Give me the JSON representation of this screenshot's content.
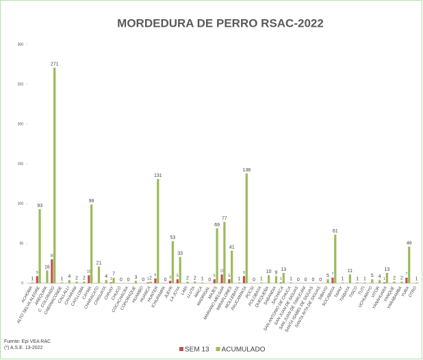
{
  "chart_data": {
    "type": "bar",
    "title": "MORDEDURA DE PERRO RSAC-2022",
    "categories": [
      "ACHOMA",
      "ALTO SELVA ALEGRE",
      "AREQUIPA",
      "C. COLORADO",
      "CABANACONDE",
      "CALLALLI",
      "CAYARANI",
      "CAYLLOMA",
      "CAYMA",
      "CHARACATO",
      "CHIGUATA",
      "CHIVAY",
      "CHUCO",
      "COCACHACRA",
      "COPORAQUE",
      "HUAMBO",
      "HUANCA",
      "HUNTER",
      "ICHUPAMPA",
      "JLBYR",
      "LA JOYA",
      "LARI",
      "LLUTA",
      "MACA",
      "MADRIGAL",
      "MAJES",
      "MARIANO MELGAR",
      "MIRAFLORES",
      "MOLLEBAYA",
      "PAUCARPATA",
      "POCSI",
      "POLOBAYA",
      "QUEQUEÑA",
      "SABANDIA",
      "SACHACA",
      "SAN ANTONIO DE CHUCA",
      "SAN JUAN DE SIGUAS",
      "SAN JUAN DE TARUCANI",
      "SANTA ISABEL DE SIGUAS",
      "SANTA RITA DE SIGUAS",
      "SIBAYO",
      "SOCABAYA",
      "TAPAY",
      "TIABAYA",
      "TISCO",
      "TUTI",
      "UCHUMAYO",
      "VITOR",
      "YANAHUARA",
      "YANQUE",
      "YARABAMBA",
      "YURA",
      "OTRO"
    ],
    "series": [
      {
        "name": "SEM 13",
        "color": "#c0504d",
        "values": [
          null,
          9,
          null,
          30,
          null,
          null,
          null,
          null,
          10,
          null,
          null,
          1,
          null,
          null,
          null,
          null,
          1,
          6,
          null,
          3,
          5,
          null,
          null,
          null,
          null,
          5,
          11,
          5,
          null,
          9,
          null,
          null,
          null,
          null,
          1,
          null,
          null,
          null,
          null,
          null,
          null,
          7,
          null,
          null,
          null,
          null,
          null,
          null,
          1,
          null,
          null,
          7,
          null
        ]
      },
      {
        "name": "ACUMULADO",
        "color": "#9bbb59",
        "values": [
          1,
          93,
          16,
          271,
          1,
          4,
          2,
          2,
          99,
          21,
          4,
          7,
          0,
          0,
          3,
          0,
          2,
          131,
          0,
          53,
          33,
          2,
          2,
          1,
          0,
          69,
          77,
          41,
          1,
          138,
          0,
          1,
          10,
          9,
          13,
          1,
          0,
          0,
          0,
          0,
          5,
          61,
          1,
          11,
          1,
          1,
          5,
          4,
          13,
          2,
          2,
          46,
          1
        ]
      }
    ],
    "ylim": [
      0,
      300
    ],
    "yticks": [
      0,
      50,
      100,
      150,
      200,
      250,
      300
    ],
    "footnotes": [
      "Fuente: Epi VEA RAC",
      "(*) A.S.E. 13-2022"
    ]
  }
}
